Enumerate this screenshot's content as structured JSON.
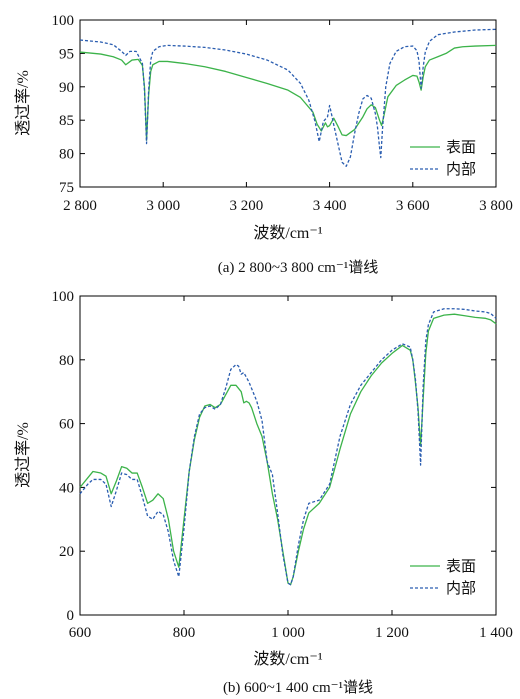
{
  "chart_data": [
    {
      "type": "line",
      "caption": "(a)  2 800~3 800 cm⁻¹谱线",
      "xlabel": "波数/cm⁻¹",
      "ylabel": "透过率/%",
      "xlim": [
        2800,
        3800
      ],
      "ylim": [
        75,
        100
      ],
      "xticks": [
        2800,
        3000,
        3200,
        3400,
        3600,
        3800
      ],
      "xtick_labels": [
        "2 800",
        "3 000",
        "3 200",
        "3 400",
        "3 600",
        "3 800"
      ],
      "yticks": [
        75,
        80,
        85,
        90,
        95,
        100
      ],
      "ytick_labels": [
        "75",
        "80",
        "85",
        "90",
        "95",
        "100"
      ],
      "legend_position": "bottom-right",
      "series": [
        {
          "name": "表面",
          "color": "#3cb34a",
          "style": "solid",
          "x": [
            2800,
            2850,
            2880,
            2900,
            2910,
            2925,
            2940,
            2950,
            2955,
            2960,
            2965,
            2970,
            2975,
            2990,
            3010,
            3050,
            3100,
            3150,
            3200,
            3250,
            3300,
            3330,
            3360,
            3370,
            3380,
            3390,
            3395,
            3400,
            3410,
            3420,
            3430,
            3440,
            3460,
            3480,
            3490,
            3500,
            3510,
            3520,
            3525,
            3530,
            3540,
            3560,
            3580,
            3600,
            3610,
            3615,
            3620,
            3625,
            3630,
            3640,
            3660,
            3680,
            3700,
            3720,
            3750,
            3800
          ],
          "y": [
            95.2,
            94.9,
            94.5,
            94.0,
            93.3,
            94.0,
            94.1,
            93.2,
            90.0,
            82.0,
            88.8,
            92.3,
            93.3,
            93.8,
            93.8,
            93.5,
            93.0,
            92.3,
            91.4,
            90.5,
            89.5,
            88.4,
            86.2,
            84.4,
            83.4,
            84.6,
            84.0,
            84.2,
            85.3,
            84.1,
            82.8,
            82.7,
            83.6,
            85.5,
            86.7,
            87.3,
            86.9,
            85.0,
            84.2,
            85.5,
            88.5,
            90.2,
            91.0,
            91.7,
            91.6,
            90.7,
            89.5,
            91.5,
            93.0,
            94.0,
            94.5,
            95.0,
            95.8,
            96.0,
            96.1,
            96.2
          ]
        },
        {
          "name": "内部",
          "color": "#2a5db0",
          "style": "dashed",
          "x": [
            2800,
            2850,
            2880,
            2900,
            2910,
            2920,
            2935,
            2950,
            2955,
            2960,
            2965,
            2970,
            2975,
            2990,
            3010,
            3050,
            3100,
            3150,
            3200,
            3250,
            3300,
            3330,
            3350,
            3365,
            3375,
            3385,
            3395,
            3400,
            3405,
            3410,
            3420,
            3430,
            3440,
            3450,
            3460,
            3470,
            3480,
            3490,
            3500,
            3510,
            3515,
            3520,
            3523,
            3527,
            3535,
            3545,
            3560,
            3580,
            3600,
            3610,
            3615,
            3620,
            3625,
            3630,
            3640,
            3660,
            3680,
            3700,
            3750,
            3800
          ],
          "y": [
            97.0,
            96.7,
            96.3,
            95.3,
            94.7,
            95.3,
            95.3,
            93.5,
            89.5,
            81.5,
            89.5,
            94.0,
            95.3,
            96.0,
            96.2,
            96.1,
            95.9,
            95.5,
            94.9,
            94.0,
            92.5,
            90.5,
            88.0,
            84.8,
            81.8,
            84.8,
            85.5,
            87.2,
            85.8,
            84.3,
            81.5,
            78.7,
            78.1,
            79.5,
            83.0,
            86.0,
            88.2,
            88.7,
            88.3,
            86.0,
            84.0,
            81.0,
            79.4,
            83.5,
            90.0,
            93.5,
            95.3,
            96.0,
            96.1,
            95.4,
            93.8,
            89.8,
            93.0,
            95.2,
            96.8,
            97.8,
            98.0,
            98.2,
            98.5,
            98.6
          ]
        }
      ]
    },
    {
      "type": "line",
      "caption": "(b)  600~1 400 cm⁻¹谱线",
      "xlabel": "波数/cm⁻¹",
      "ylabel": "透过率/%",
      "xlim": [
        600,
        1400
      ],
      "ylim": [
        0,
        100
      ],
      "xticks": [
        600,
        800,
        1000,
        1200,
        1400
      ],
      "xtick_labels": [
        "600",
        "800",
        "1 000",
        "1 200",
        "1 400"
      ],
      "yticks": [
        0,
        20,
        40,
        60,
        80,
        100
      ],
      "ytick_labels": [
        "0",
        "20",
        "40",
        "60",
        "80",
        "100"
      ],
      "legend_position": "bottom-right",
      "series": [
        {
          "name": "表面",
          "color": "#3cb34a",
          "style": "solid",
          "x": [
            600,
            615,
            625,
            640,
            650,
            660,
            670,
            680,
            690,
            700,
            710,
            720,
            730,
            740,
            750,
            760,
            770,
            780,
            790,
            800,
            810,
            820,
            830,
            840,
            850,
            860,
            870,
            880,
            890,
            900,
            910,
            915,
            920,
            925,
            930,
            940,
            950,
            960,
            970,
            980,
            990,
            1000,
            1005,
            1010,
            1020,
            1030,
            1040,
            1060,
            1080,
            1100,
            1120,
            1140,
            1160,
            1180,
            1200,
            1220,
            1235,
            1240,
            1245,
            1250,
            1255,
            1260,
            1265,
            1270,
            1280,
            1300,
            1320,
            1340,
            1360,
            1380,
            1390,
            1400
          ],
          "y": [
            40,
            43,
            45,
            44.5,
            43.5,
            38,
            42,
            46.5,
            46,
            44.5,
            44.5,
            40,
            35,
            36,
            38,
            36.5,
            30,
            20,
            15,
            30,
            45,
            55,
            62,
            65.5,
            66,
            65,
            66,
            69,
            72,
            72,
            70,
            66.5,
            67,
            66.5,
            65,
            60,
            56,
            48,
            38,
            30,
            20,
            10,
            9.5,
            12,
            20,
            27,
            32,
            35,
            40,
            52,
            63,
            70,
            75,
            79,
            82,
            84.5,
            83,
            80,
            73,
            65,
            53,
            68,
            82,
            89,
            93,
            94,
            94.3,
            93.8,
            93.3,
            93.0,
            92.5,
            91.3
          ]
        },
        {
          "name": "内部",
          "color": "#2a5db0",
          "style": "dashed",
          "x": [
            600,
            615,
            625,
            640,
            650,
            660,
            670,
            680,
            690,
            700,
            710,
            720,
            730,
            740,
            750,
            760,
            770,
            780,
            790,
            800,
            810,
            820,
            830,
            840,
            850,
            860,
            870,
            880,
            890,
            900,
            905,
            910,
            915,
            920,
            925,
            930,
            940,
            950,
            960,
            970,
            980,
            990,
            1000,
            1005,
            1010,
            1020,
            1030,
            1040,
            1060,
            1080,
            1100,
            1120,
            1140,
            1160,
            1180,
            1200,
            1220,
            1235,
            1240,
            1245,
            1250,
            1255,
            1260,
            1265,
            1270,
            1280,
            1300,
            1320,
            1340,
            1360,
            1380,
            1390,
            1400
          ],
          "y": [
            38,
            41,
            42.5,
            42.5,
            41,
            34,
            39,
            44.5,
            44,
            42.5,
            42.5,
            37,
            31,
            30,
            32.5,
            31.5,
            26,
            17,
            12,
            27,
            45,
            56,
            63,
            65,
            65.5,
            64.5,
            66,
            71,
            77,
            78.5,
            78,
            75.5,
            76,
            74.5,
            73,
            71,
            67,
            61,
            48,
            44,
            32,
            19,
            10,
            9.5,
            12,
            22,
            30,
            35,
            36,
            41,
            56,
            66,
            72,
            76,
            80,
            83,
            85,
            84,
            80,
            74,
            64,
            47,
            72,
            86,
            91,
            95,
            96,
            96,
            95.8,
            95.3,
            95.0,
            94.5,
            93
          ]
        }
      ]
    }
  ]
}
